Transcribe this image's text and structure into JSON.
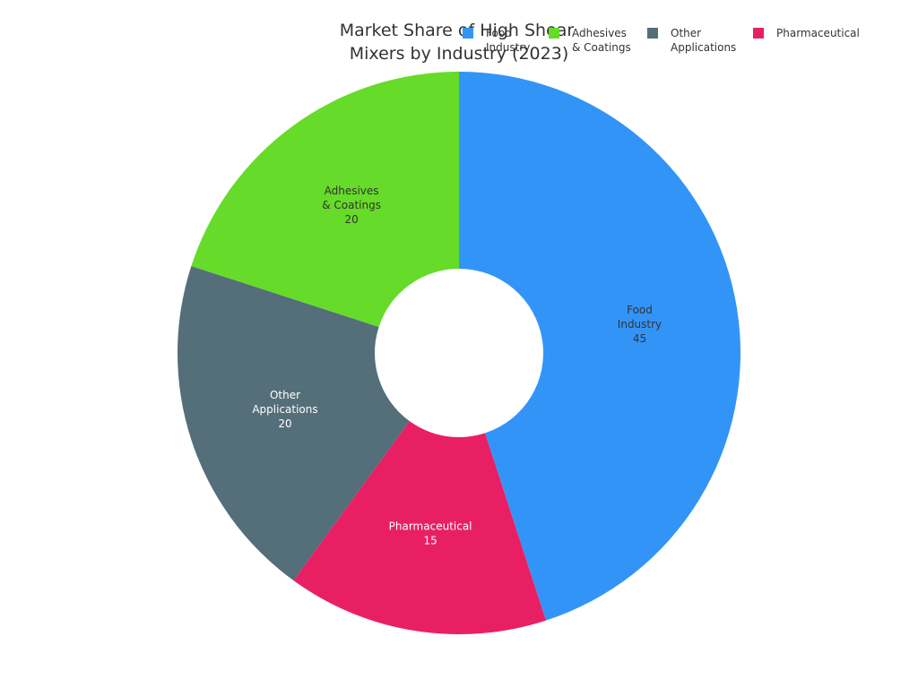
{
  "chart_data": {
    "type": "donut",
    "title_lines": [
      "Market Share of High Shear",
      "Mixers by Industry (2023)"
    ],
    "slices": [
      {
        "name": "Food Industry",
        "label_lines": [
          "Food",
          "Industry"
        ],
        "value": 45,
        "value_label": "45",
        "color": "#3394f7",
        "label_color": "#333333"
      },
      {
        "name": "Pharmaceutical",
        "label_lines": [
          "Pharmaceutical"
        ],
        "value": 15,
        "value_label": "15",
        "color": "#e82063",
        "label_color": "#ffffff"
      },
      {
        "name": "Other Applications",
        "label_lines": [
          "Other",
          "Applications"
        ],
        "value": 20,
        "value_label": "20",
        "color": "#546e7a",
        "label_color": "#ffffff"
      },
      {
        "name": "Adhesives & Coatings",
        "label_lines": [
          "Adhesives",
          "& Coatings"
        ],
        "value": 20,
        "value_label": "20",
        "color": "#66db29",
        "label_color": "#333333"
      }
    ],
    "legend": {
      "position": "top-right",
      "items": [
        {
          "label_lines": [
            "Food",
            "Industry"
          ],
          "color": "#3394f7"
        },
        {
          "label_lines": [
            "Adhesives",
            "& Coatings"
          ],
          "color": "#66db29"
        },
        {
          "label_lines": [
            "Other",
            "Applications"
          ],
          "color": "#546e7a"
        },
        {
          "label_lines": [
            "Pharmaceutical"
          ],
          "color": "#e82063"
        }
      ]
    }
  }
}
